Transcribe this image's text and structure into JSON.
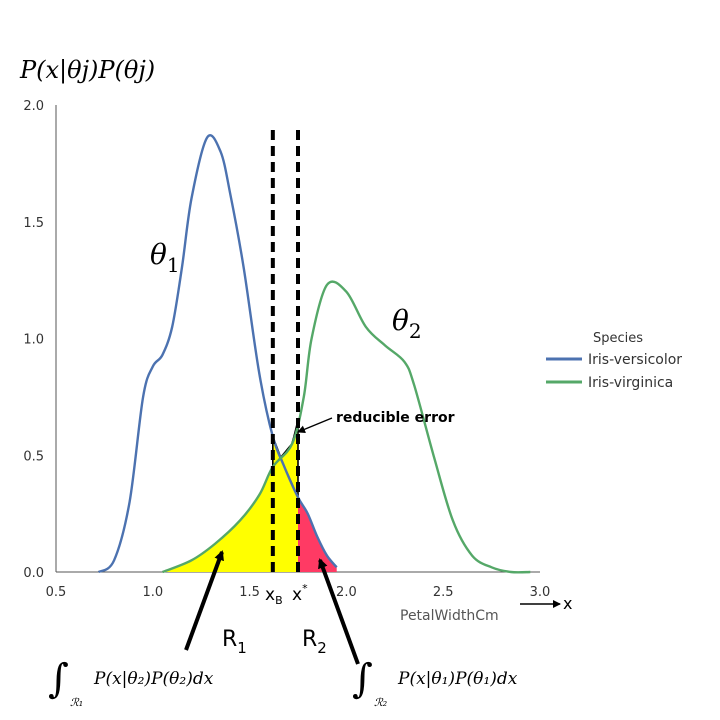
{
  "chart_data": {
    "type": "area",
    "ylabel": "P(x|θj)P(θj)",
    "xlabel": "PetalWidthCm",
    "x_arrow_label": "x",
    "xlim": [
      0.5,
      3.0
    ],
    "ylim": [
      0.0,
      2.0
    ],
    "x_ticks": [
      "0.5",
      "1.0",
      "1.5",
      "2.0",
      "2.5",
      "3.0"
    ],
    "y_ticks": [
      "0.0",
      "0.5",
      "1.0",
      "1.5",
      "2.0"
    ],
    "grid": false,
    "legend": {
      "title": "Species",
      "placement": "right",
      "entries": [
        {
          "name": "Iris-versicolor",
          "color": "#4c72b0"
        },
        {
          "name": "Iris-virginica",
          "color": "#55a868"
        }
      ]
    },
    "series": [
      {
        "name": "Iris-versicolor",
        "color": "#4c72b0",
        "x": [
          0.72,
          0.8,
          0.88,
          0.95,
          1.0,
          1.05,
          1.1,
          1.15,
          1.2,
          1.28,
          1.35,
          1.4,
          1.47,
          1.55,
          1.62,
          1.68,
          1.75,
          1.8,
          1.85,
          1.9,
          1.95
        ],
        "y": [
          0.0,
          0.05,
          0.3,
          0.75,
          0.88,
          0.93,
          1.05,
          1.3,
          1.6,
          1.86,
          1.8,
          1.62,
          1.3,
          0.85,
          0.58,
          0.45,
          0.32,
          0.25,
          0.15,
          0.07,
          0.02
        ]
      },
      {
        "name": "Iris-virginica",
        "color": "#55a868",
        "x": [
          1.05,
          1.2,
          1.32,
          1.45,
          1.55,
          1.62,
          1.72,
          1.78,
          1.82,
          1.9,
          2.0,
          2.1,
          2.2,
          2.3,
          2.35,
          2.45,
          2.55,
          2.65,
          2.75,
          2.85,
          2.95
        ],
        "y": [
          0.0,
          0.05,
          0.12,
          0.22,
          0.33,
          0.45,
          0.55,
          0.75,
          1.0,
          1.23,
          1.2,
          1.05,
          0.97,
          0.9,
          0.8,
          0.5,
          0.22,
          0.07,
          0.02,
          0.0,
          0.0
        ]
      }
    ],
    "thresholds": [
      {
        "name": "xB",
        "x": 1.62,
        "label": "x",
        "subscript": "B"
      },
      {
        "name": "x_star",
        "x": 1.75,
        "label": "x",
        "superscript": "*"
      }
    ],
    "regions": [
      {
        "name": "R1",
        "label": "R",
        "subscript": "1",
        "color": "#ffff00"
      },
      {
        "name": "R2",
        "label": "R",
        "subscript": "2",
        "color": "#ff3a64"
      }
    ],
    "annotations": {
      "theta1": {
        "symbol": "θ",
        "subscript": "1"
      },
      "theta2": {
        "symbol": "θ",
        "subscript": "2"
      },
      "reducible_error": "reducible error",
      "integral1": {
        "integral": "∫",
        "domain": "ℛ₁",
        "expr": "P(x|θ₂)P(θ₂)dx"
      },
      "integral2": {
        "integral": "∫",
        "domain": "ℛ₂",
        "expr": "P(x|θ₁)P(θ₁)dx"
      }
    }
  }
}
